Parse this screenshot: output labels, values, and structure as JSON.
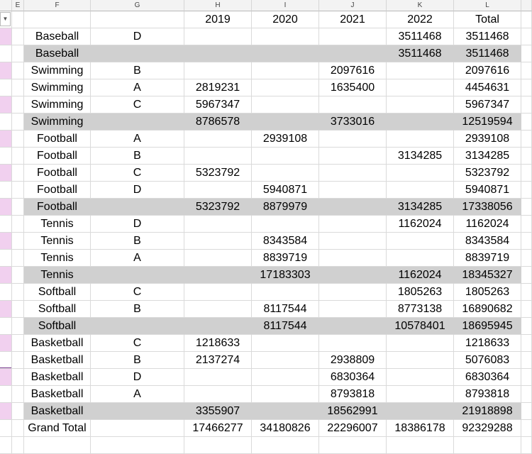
{
  "column_letters": [
    "E",
    "F",
    "G",
    "H",
    "I",
    "J",
    "K",
    "L"
  ],
  "header": [
    "",
    "",
    "2019",
    "2020",
    "2021",
    "2022",
    "Total"
  ],
  "rows": [
    {
      "type": "detail",
      "sport": "Baseball",
      "group": "D",
      "values": [
        "",
        "",
        "",
        "3511468",
        "3511468"
      ]
    },
    {
      "type": "subtotal",
      "sport": "Baseball",
      "group": "",
      "values": [
        "",
        "",
        "",
        "3511468",
        "3511468"
      ]
    },
    {
      "type": "detail",
      "sport": "Swimming",
      "group": "B",
      "values": [
        "",
        "",
        "2097616",
        "",
        "2097616"
      ]
    },
    {
      "type": "detail",
      "sport": "Swimming",
      "group": "A",
      "values": [
        "2819231",
        "",
        "1635400",
        "",
        "4454631"
      ]
    },
    {
      "type": "detail",
      "sport": "Swimming",
      "group": "C",
      "values": [
        "5967347",
        "",
        "",
        "",
        "5967347"
      ]
    },
    {
      "type": "subtotal",
      "sport": "Swimming",
      "group": "",
      "values": [
        "8786578",
        "",
        "3733016",
        "",
        "12519594"
      ]
    },
    {
      "type": "detail",
      "sport": "Football",
      "group": "A",
      "values": [
        "",
        "2939108",
        "",
        "",
        "2939108"
      ]
    },
    {
      "type": "detail",
      "sport": "Football",
      "group": "B",
      "values": [
        "",
        "",
        "",
        "3134285",
        "3134285"
      ]
    },
    {
      "type": "detail",
      "sport": "Football",
      "group": "C",
      "values": [
        "5323792",
        "",
        "",
        "",
        "5323792"
      ]
    },
    {
      "type": "detail",
      "sport": "Football",
      "group": "D",
      "values": [
        "",
        "5940871",
        "",
        "",
        "5940871"
      ]
    },
    {
      "type": "subtotal",
      "sport": "Football",
      "group": "",
      "values": [
        "5323792",
        "8879979",
        "",
        "3134285",
        "17338056"
      ]
    },
    {
      "type": "detail",
      "sport": "Tennis",
      "group": "D",
      "values": [
        "",
        "",
        "",
        "1162024",
        "1162024"
      ]
    },
    {
      "type": "detail",
      "sport": "Tennis",
      "group": "B",
      "values": [
        "",
        "8343584",
        "",
        "",
        "8343584"
      ]
    },
    {
      "type": "detail",
      "sport": "Tennis",
      "group": "A",
      "values": [
        "",
        "8839719",
        "",
        "",
        "8839719"
      ]
    },
    {
      "type": "subtotal",
      "sport": "Tennis",
      "group": "",
      "values": [
        "",
        "17183303",
        "",
        "1162024",
        "18345327"
      ]
    },
    {
      "type": "detail",
      "sport": "Softball",
      "group": "C",
      "values": [
        "",
        "",
        "",
        "1805263",
        "1805263"
      ]
    },
    {
      "type": "detail",
      "sport": "Softball",
      "group": "B",
      "values": [
        "",
        "8117544",
        "",
        "8773138",
        "16890682"
      ]
    },
    {
      "type": "subtotal",
      "sport": "Softball",
      "group": "",
      "values": [
        "",
        "8117544",
        "",
        "10578401",
        "18695945"
      ]
    },
    {
      "type": "detail",
      "sport": "Basketball",
      "group": "C",
      "values": [
        "1218633",
        "",
        "",
        "",
        "1218633"
      ]
    },
    {
      "type": "detail",
      "sport": "Basketball",
      "group": "B",
      "values": [
        "2137274",
        "",
        "2938809",
        "",
        "5076083"
      ]
    },
    {
      "type": "detail",
      "sport": "Basketball",
      "group": "D",
      "values": [
        "",
        "",
        "6830364",
        "",
        "6830364"
      ]
    },
    {
      "type": "detail",
      "sport": "Basketball",
      "group": "A",
      "values": [
        "",
        "",
        "8793818",
        "",
        "8793818"
      ]
    },
    {
      "type": "subtotal",
      "sport": "Basketball",
      "group": "",
      "values": [
        "3355907",
        "",
        "18562991",
        "",
        "21918898"
      ]
    },
    {
      "type": "grand",
      "sport": "Grand Total",
      "group": "",
      "values": [
        "17466277",
        "34180826",
        "22296007",
        "18386178",
        "92329288"
      ]
    }
  ],
  "colors": {
    "subtotal_fill": "#d0d0d0",
    "band_fill": "#f1d0ef"
  },
  "filter_icon": "dropdown-arrow-icon"
}
